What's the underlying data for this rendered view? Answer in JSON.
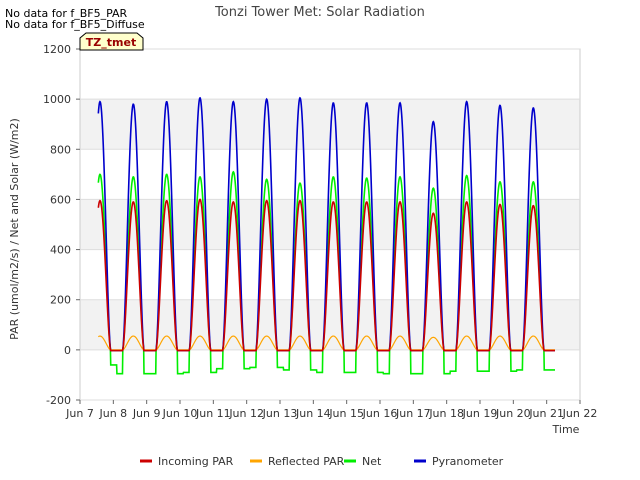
{
  "chart_data": {
    "type": "line",
    "title": "Tonzi Tower Met: Solar Radiation",
    "xlabel": "Time",
    "ylabel": "PAR (umol/m2/s) / Net and Solar (W/m2)",
    "ylim": [
      -200,
      1200
    ],
    "xlim": [
      7,
      22
    ],
    "yticks": [
      -200,
      0,
      200,
      400,
      600,
      800,
      1000,
      1200
    ],
    "xticks": [
      {
        "v": 7,
        "label": "Jun 7"
      },
      {
        "v": 8,
        "label": "Jun 8"
      },
      {
        "v": 9,
        "label": "Jun 9"
      },
      {
        "v": 10,
        "label": "Jun 10"
      },
      {
        "v": 11,
        "label": "Jun 11"
      },
      {
        "v": 12,
        "label": "Jun 12"
      },
      {
        "v": 13,
        "label": "Jun 13"
      },
      {
        "v": 14,
        "label": "Jun 14"
      },
      {
        "v": 15,
        "label": "Jun 15"
      },
      {
        "v": 16,
        "label": "Jun 16"
      },
      {
        "v": 17,
        "label": "Jun 17"
      },
      {
        "v": 18,
        "label": "Jun 18"
      },
      {
        "v": 19,
        "label": "Jun 19"
      },
      {
        "v": 20,
        "label": "Jun 20"
      },
      {
        "v": 21,
        "label": "Jun 21"
      },
      {
        "v": 22,
        "label": "Jun 22"
      }
    ],
    "days": [
      7.6,
      8.6,
      9.6,
      10.6,
      11.6,
      12.6,
      13.6,
      14.6,
      15.6,
      16.6,
      17.6,
      18.6,
      19.6,
      20.6
    ],
    "series": [
      {
        "name": "Incoming PAR",
        "color": "#cc0000",
        "peaks": [
          595,
          590,
          595,
          600,
          590,
          595,
          595,
          590,
          590,
          590,
          545,
          590,
          580,
          575
        ]
      },
      {
        "name": "Reflected PAR",
        "color": "#ffa500",
        "peaks": [
          55,
          55,
          55,
          55,
          55,
          55,
          55,
          55,
          55,
          55,
          50,
          55,
          55,
          55
        ]
      },
      {
        "name": "Net",
        "color": "#00ee00",
        "peaks": [
          700,
          690,
          700,
          690,
          710,
          680,
          665,
          690,
          685,
          690,
          645,
          695,
          670,
          670
        ],
        "night": [
          -60,
          -95,
          -95,
          -90,
          -75,
          -70,
          -80,
          -90,
          -90,
          -95,
          -95,
          -85,
          -85,
          -80,
          -80
        ]
      },
      {
        "name": "Pyranometer",
        "color": "#0000cc",
        "peaks": [
          990,
          980,
          990,
          1005,
          990,
          1000,
          1005,
          985,
          985,
          985,
          910,
          990,
          975,
          965
        ]
      }
    ],
    "legend_position": "bottom",
    "badge": "TZ_tmet"
  },
  "notes": [
    "No data for f_BF5_PAR",
    "No data for f_BF5_Diffuse"
  ]
}
